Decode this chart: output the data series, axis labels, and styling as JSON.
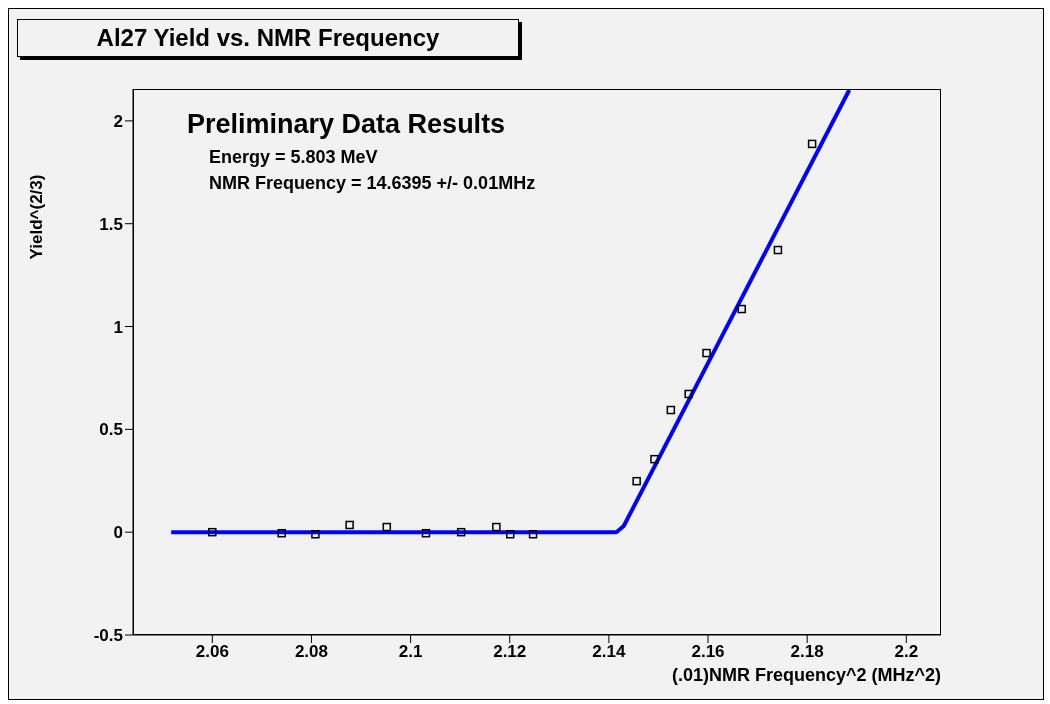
{
  "chart_data": {
    "type": "scatter",
    "title": "Al27 Yield vs. NMR Frequency",
    "xlabel": "(.01)NMR Frequency^2 (MHz^2)",
    "ylabel": "Yield^(2/3)",
    "annotations": [
      "Preliminary Data Results",
      "Energy = 5.803 MeV",
      "NMR Frequency = 14.6395 +/- 0.01MHz"
    ],
    "xlim": [
      2.044,
      2.207
    ],
    "xticks": [
      2.06,
      2.08,
      2.1,
      2.12,
      2.14,
      2.16,
      2.18,
      2.2
    ],
    "ylim": [
      -0.5,
      2.155
    ],
    "yticks": [
      -0.5,
      0,
      0.5,
      1,
      1.5,
      2
    ],
    "marker": "square",
    "series": [
      {
        "color": "#000000",
        "x": [
          2.06,
          2.074,
          2.0808,
          2.0877,
          2.0952,
          2.1031,
          2.1102,
          2.1173,
          2.1201,
          2.1247,
          2.1456,
          2.1492,
          2.1525,
          2.1561,
          2.1597,
          2.1668,
          2.1741,
          2.181
        ],
        "values": [
          0,
          -0.005,
          -0.01,
          0.035,
          0.025,
          -0.005,
          0,
          0.025,
          -0.01,
          -0.01,
          0.248,
          0.355,
          0.594,
          0.672,
          0.871,
          1.085,
          1.372,
          1.888
        ]
      },
      {
        "type": "line",
        "color": "#0000ff",
        "line_style": "solid",
        "marker": "none",
        "x": [
          2.0517,
          2.1415,
          2.143,
          2.1885
        ],
        "values": [
          0,
          0,
          0.03,
          2.15
        ]
      }
    ]
  }
}
